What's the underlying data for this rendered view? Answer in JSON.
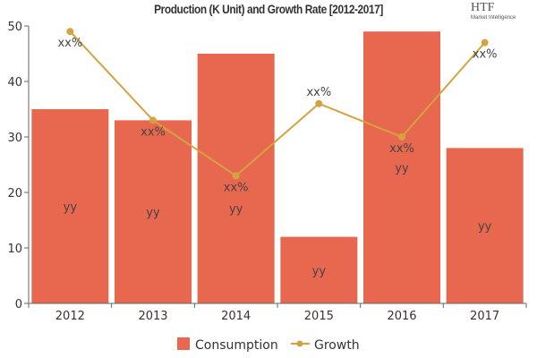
{
  "chart_data": {
    "type": "bar",
    "title": "Production (K Unit) and Growth Rate [2012-2017]",
    "categories": [
      "2012",
      "2013",
      "2014",
      "2015",
      "2016",
      "2017"
    ],
    "ylim": [
      0,
      50
    ],
    "yticks": [
      0,
      10,
      20,
      30,
      40,
      50
    ],
    "grid": false,
    "legend": "bottom",
    "series": [
      {
        "name": "Consumption",
        "type": "bar",
        "color": "#E8684F",
        "values": [
          35,
          33,
          45,
          12,
          49,
          28
        ],
        "data_label": "yy"
      },
      {
        "name": "Growth",
        "type": "line",
        "color": "#D4A33F",
        "values": [
          49,
          33,
          23,
          36,
          30,
          47
        ],
        "data_label": "xx%"
      }
    ]
  },
  "logo": {
    "text": "HTF",
    "subtext": "Market Intelligence"
  }
}
